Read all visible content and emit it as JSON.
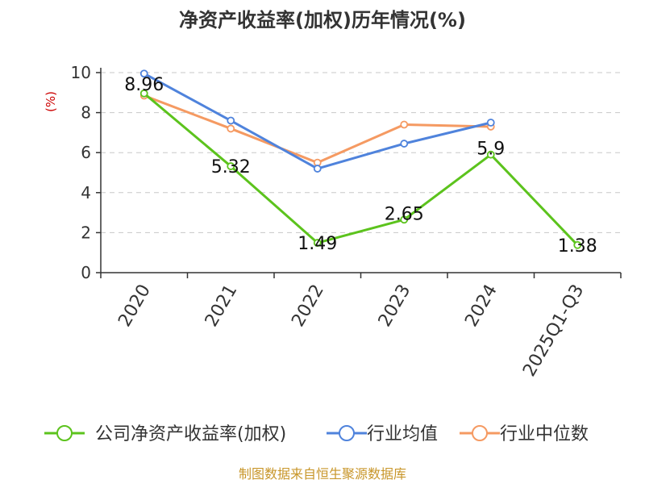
{
  "chart_data": {
    "type": "line",
    "title": "净资产收益率(加权)历年情况(%)",
    "ylabel": "(%)",
    "xlabel": "",
    "ylim": [
      0,
      10
    ],
    "yticks": [
      0,
      2,
      4,
      6,
      8,
      10
    ],
    "grid": true,
    "legend_position": "bottom",
    "categories": [
      "2020",
      "2021",
      "2022",
      "2023",
      "2024",
      "2025Q1-Q3"
    ],
    "series": [
      {
        "name": "公司净资产收益率(加权)",
        "color": "#5cc31d",
        "values": [
          8.96,
          5.32,
          1.49,
          2.65,
          5.9,
          1.38
        ],
        "labels": [
          "8.96",
          "5.32",
          "1.49",
          "2.65",
          "5.9",
          "1.38"
        ]
      },
      {
        "name": "行业均值",
        "color": "#4f83dc",
        "values": [
          9.95,
          7.6,
          5.2,
          6.45,
          7.5,
          null
        ]
      },
      {
        "name": "行业中位数",
        "color": "#f59a62",
        "values": [
          8.85,
          7.2,
          5.5,
          7.4,
          7.3,
          null
        ]
      }
    ]
  },
  "source": "制图数据来自恒生聚源数据库"
}
